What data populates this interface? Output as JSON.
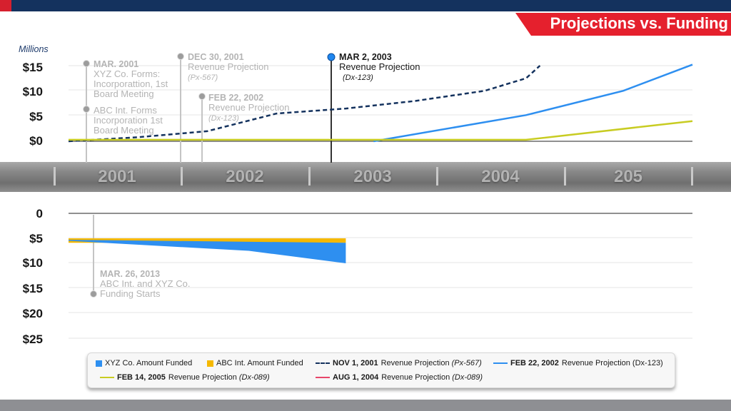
{
  "title": "Projections vs. Funding",
  "units_label": "Millions",
  "upper_axis_labels": [
    "$15",
    "$10",
    "$5",
    "$0"
  ],
  "lower_axis_labels": [
    "0",
    "$5",
    "$10",
    "$15",
    "$20",
    "$25"
  ],
  "timeline": {
    "years": [
      "2001",
      "2002",
      "2003",
      "2004",
      "205"
    ]
  },
  "annotations": [
    {
      "date": "MAR. 2001",
      "text": "XYZ Co. Forms: Incorporattion, 1st Board Meeting"
    },
    {
      "date": "",
      "text": "ABC Int. Forms Incorporation 1st Board Meeting"
    },
    {
      "date": "DEC 30, 2001",
      "text": "Revenue Projection",
      "ref": "(Px-567)"
    },
    {
      "date": "FEB 22, 2002",
      "text": "Revenue Projection",
      "ref": "(Dx-123)"
    },
    {
      "date": "MAR 2, 2003",
      "text": "Revenue Projection",
      "ref": "(Dx-123)"
    },
    {
      "date": "MAR. 26, 2013",
      "text": "ABC Int. and XYZ Co. Funding Starts"
    }
  ],
  "legend": [
    {
      "label": "XYZ Co. Amount Funded",
      "color": "#2e8ff0",
      "shape": "square"
    },
    {
      "label": "ABC Int. Amount Funded",
      "color": "#f5b800",
      "shape": "square"
    },
    {
      "date": "NOV 1, 2001",
      "label": "Revenue Projection",
      "ref": "(Px-567)",
      "color": "#14325e",
      "shape": "dash"
    },
    {
      "date": "FEB 22, 2002",
      "label": "Revenue Projection (Dx-123)",
      "color": "#2e8ff0",
      "shape": "line"
    },
    {
      "date": "FEB 14, 2005",
      "label": "Revenue Projection",
      "ref": "(Dx-089)",
      "color": "#c8cc22",
      "shape": "line"
    },
    {
      "date": "AUG 1, 2004",
      "label": "Revenue Projection",
      "ref": "(Dx-089)",
      "color": "#e8466a",
      "shape": "line"
    }
  ],
  "chart_data": [
    {
      "type": "line",
      "title": "Projections vs. Funding",
      "ylabel": "Millions",
      "ylim": [
        0,
        15
      ],
      "series": [
        {
          "name": "NOV 1, 2001 Revenue Projection (Px-567)",
          "color": "#14325e",
          "style": "dashed",
          "points": [
            [
              2001.0,
              0
            ],
            [
              2001.5,
              0.8
            ],
            [
              2002.0,
              2.0
            ],
            [
              2002.5,
              5.5
            ],
            [
              2003.0,
              6.5
            ],
            [
              2003.5,
              8.0
            ],
            [
              2004.0,
              10.0
            ],
            [
              2004.3,
              12.5
            ],
            [
              2004.4,
              15.0
            ]
          ]
        },
        {
          "name": "FEB 22, 2002 Revenue Projection (Dx-123)",
          "color": "#2e8ff0",
          "style": "solid",
          "points": [
            [
              2003.2,
              0
            ],
            [
              2004.3,
              5.2
            ],
            [
              2005.0,
              10.0
            ],
            [
              2005.5,
              15.2
            ]
          ]
        },
        {
          "name": "FEB 14, 2005 Revenue Projection (Dx-089)",
          "color": "#c8cc22",
          "style": "solid",
          "points": [
            [
              2001.0,
              0.3
            ],
            [
              2004.3,
              0.3
            ],
            [
              2005.5,
              4.0
            ]
          ]
        }
      ]
    },
    {
      "type": "area",
      "ylim": [
        0,
        25
      ],
      "y_reversed": true,
      "series": [
        {
          "name": "ABC Int. Amount Funded",
          "color": "#f5b800",
          "points": [
            [
              2001.0,
              5.0
            ],
            [
              2003.0,
              5.0
            ]
          ]
        },
        {
          "name": "XYZ Co. Amount Funded",
          "color": "#2e8ff0",
          "points": [
            [
              2001.0,
              5.5
            ],
            [
              2002.3,
              7.5
            ],
            [
              2003.0,
              10.0
            ]
          ]
        }
      ]
    }
  ]
}
